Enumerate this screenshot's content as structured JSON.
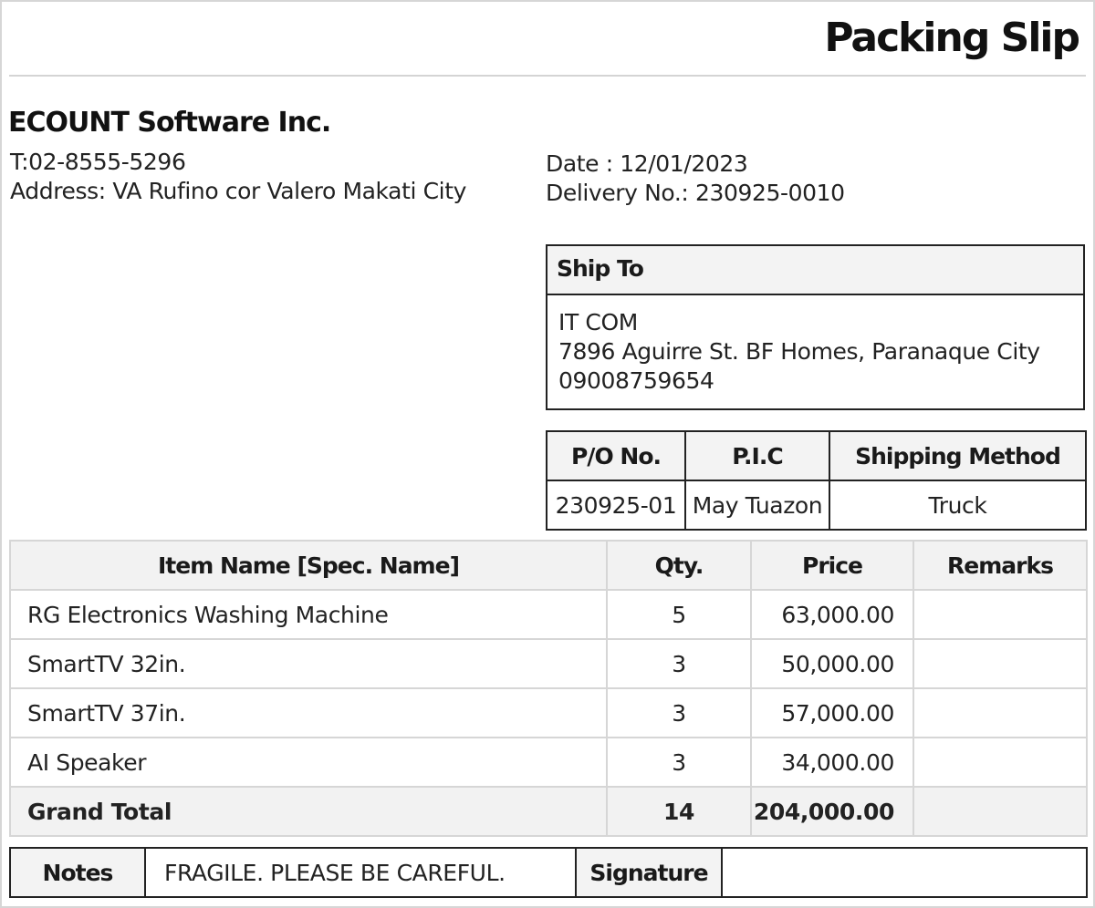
{
  "header": {
    "title": "Packing Slip"
  },
  "company": {
    "name": "ECOUNT Software Inc.",
    "phone": "T:02-8555-5296",
    "address": "Address: VA Rufino cor Valero Makati City"
  },
  "meta": {
    "date": "Date : 12/01/2023",
    "delivery_no": "Delivery No.: 230925-0010"
  },
  "ship_to": {
    "label": "Ship To",
    "name": "IT COM",
    "address": "7896 Aguirre St. BF Homes, Paranaque City",
    "phone": "09008759654"
  },
  "order_info": {
    "headers": [
      "P/O No.",
      "P.I.C",
      "Shipping Method"
    ],
    "values": [
      "230925-01",
      "May Tuazon",
      "Truck"
    ]
  },
  "items": {
    "headers": [
      "Item Name [Spec. Name]",
      "Qty.",
      "Price",
      "Remarks"
    ],
    "rows": [
      {
        "name": "RG Electronics Washing Machine",
        "qty": "5",
        "price": "63,000.00",
        "remarks": ""
      },
      {
        "name": "SmartTV 32in.",
        "qty": "3",
        "price": "50,000.00",
        "remarks": ""
      },
      {
        "name": "SmartTV 37in.",
        "qty": "3",
        "price": "57,000.00",
        "remarks": ""
      },
      {
        "name": "AI Speaker",
        "qty": "3",
        "price": "34,000.00",
        "remarks": ""
      }
    ],
    "total": {
      "label": "Grand Total",
      "qty": "14",
      "price": "204,000.00",
      "remarks": ""
    }
  },
  "footer": {
    "notes_label": "Notes",
    "notes_value": "FRAGILE. PLEASE BE CAREFUL.",
    "signature_label": "Signature",
    "signature_value": ""
  }
}
